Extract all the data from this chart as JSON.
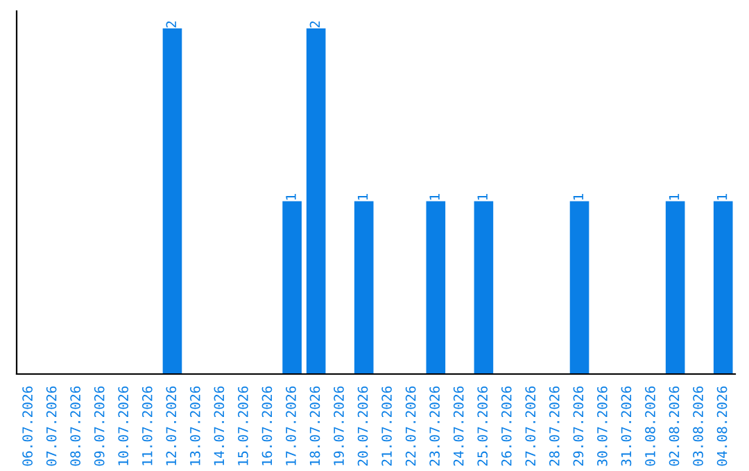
{
  "chart_data": {
    "type": "bar",
    "categories": [
      "06.07.2026",
      "07.07.2026",
      "08.07.2026",
      "09.07.2026",
      "10.07.2026",
      "11.07.2026",
      "12.07.2026",
      "13.07.2026",
      "14.07.2026",
      "15.07.2026",
      "16.07.2026",
      "17.07.2026",
      "18.07.2026",
      "19.07.2026",
      "20.07.2026",
      "21.07.2026",
      "22.07.2026",
      "23.07.2026",
      "24.07.2026",
      "25.07.2026",
      "26.07.2026",
      "27.07.2026",
      "28.07.2026",
      "29.07.2026",
      "30.07.2026",
      "31.07.2026",
      "01.08.2026",
      "02.08.2026",
      "03.08.2026",
      "04.08.2026"
    ],
    "values": [
      0,
      0,
      0,
      0,
      0,
      0,
      2,
      0,
      0,
      0,
      0,
      1,
      2,
      0,
      1,
      0,
      0,
      1,
      0,
      1,
      0,
      0,
      0,
      1,
      0,
      0,
      0,
      1,
      0,
      1
    ],
    "value_labels": [
      null,
      null,
      null,
      null,
      null,
      null,
      "2",
      null,
      null,
      null,
      null,
      "1",
      "2",
      null,
      "1",
      null,
      null,
      "1",
      null,
      "1",
      null,
      null,
      null,
      "1",
      null,
      null,
      null,
      "1",
      null,
      "1"
    ],
    "color": "#0a7fe6",
    "grid": false,
    "legend": false,
    "tick_labels": "x"
  }
}
